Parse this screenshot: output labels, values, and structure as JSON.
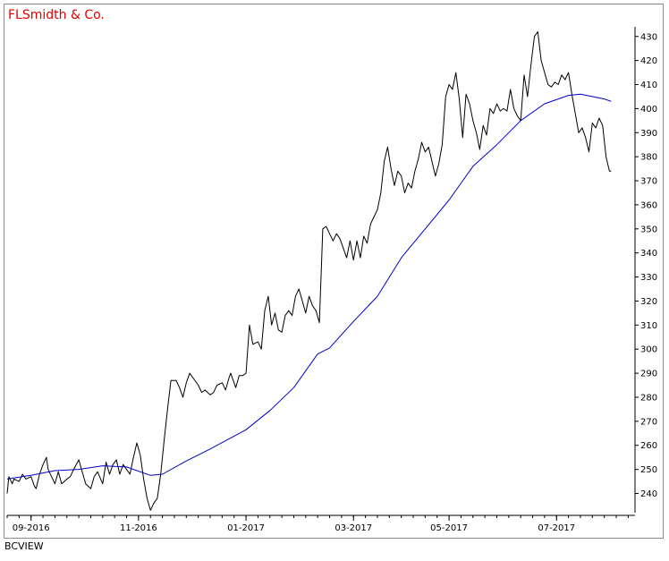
{
  "chart_data": {
    "type": "line",
    "title": "FLSmidth & Co.",
    "source": "BCVIEW",
    "colors": {
      "title": "#e00000",
      "price": "#000000",
      "moving_average": "#0000cc",
      "axes": "#000000"
    },
    "ylim": [
      232,
      434
    ],
    "y_ticks": [
      240,
      250,
      260,
      270,
      280,
      290,
      300,
      310,
      320,
      330,
      340,
      350,
      360,
      370,
      380,
      390,
      400,
      410,
      420,
      430
    ],
    "x_range": [
      "2016-08-22",
      "2017-08-25"
    ],
    "x_tick_labels": [
      {
        "date": "2016-09-05",
        "label": "09-2016"
      },
      {
        "date": "2016-11-07",
        "label": "11-2016"
      },
      {
        "date": "2017-01-09",
        "label": "01-2017"
      },
      {
        "date": "2017-03-13",
        "label": "03-2017"
      },
      {
        "date": "2017-05-08",
        "label": "05-2017"
      },
      {
        "date": "2017-07-10",
        "label": "07-2017"
      }
    ],
    "series": [
      {
        "style": "price",
        "points": [
          [
            "2016-08-22",
            240
          ],
          [
            "2016-08-23",
            247
          ],
          [
            "2016-08-25",
            244
          ],
          [
            "2016-08-26",
            246
          ],
          [
            "2016-08-29",
            245
          ],
          [
            "2016-08-31",
            248
          ],
          [
            "2016-09-02",
            246
          ],
          [
            "2016-09-05",
            247
          ],
          [
            "2016-09-07",
            243
          ],
          [
            "2016-09-08",
            242
          ],
          [
            "2016-09-10",
            248
          ],
          [
            "2016-09-12",
            252
          ],
          [
            "2016-09-14",
            255
          ],
          [
            "2016-09-15",
            250
          ],
          [
            "2016-09-17",
            247
          ],
          [
            "2016-09-19",
            244
          ],
          [
            "2016-09-21",
            249
          ],
          [
            "2016-09-23",
            244
          ],
          [
            "2016-09-26",
            246
          ],
          [
            "2016-09-28",
            247
          ],
          [
            "2016-09-30",
            250
          ],
          [
            "2016-10-03",
            254
          ],
          [
            "2016-10-05",
            249
          ],
          [
            "2016-10-07",
            244
          ],
          [
            "2016-10-10",
            242
          ],
          [
            "2016-10-12",
            247
          ],
          [
            "2016-10-14",
            249
          ],
          [
            "2016-10-17",
            244
          ],
          [
            "2016-10-19",
            253
          ],
          [
            "2016-10-21",
            248
          ],
          [
            "2016-10-23",
            252
          ],
          [
            "2016-10-25",
            254
          ],
          [
            "2016-10-27",
            248
          ],
          [
            "2016-10-29",
            252
          ],
          [
            "2016-10-31",
            250
          ],
          [
            "2016-11-02",
            248
          ],
          [
            "2016-11-04",
            255
          ],
          [
            "2016-11-06",
            261
          ],
          [
            "2016-11-08",
            256
          ],
          [
            "2016-11-10",
            246
          ],
          [
            "2016-11-12",
            238
          ],
          [
            "2016-11-14",
            233
          ],
          [
            "2016-11-16",
            236
          ],
          [
            "2016-11-18",
            238
          ],
          [
            "2016-11-20",
            248
          ],
          [
            "2016-11-22",
            262
          ],
          [
            "2016-11-24",
            275
          ],
          [
            "2016-11-26",
            287
          ],
          [
            "2016-11-29",
            287
          ],
          [
            "2016-12-01",
            284
          ],
          [
            "2016-12-03",
            280
          ],
          [
            "2016-12-05",
            286
          ],
          [
            "2016-12-07",
            290
          ],
          [
            "2016-12-09",
            288
          ],
          [
            "2016-12-12",
            285
          ],
          [
            "2016-12-14",
            282
          ],
          [
            "2016-12-16",
            283
          ],
          [
            "2016-12-19",
            281
          ],
          [
            "2016-12-21",
            282
          ],
          [
            "2016-12-23",
            285
          ],
          [
            "2016-12-26",
            286
          ],
          [
            "2016-12-28",
            283
          ],
          [
            "2016-12-30",
            288
          ],
          [
            "2016-12-31",
            290
          ],
          [
            "2017-01-03",
            284
          ],
          [
            "2017-01-05",
            289
          ],
          [
            "2017-01-07",
            289
          ],
          [
            "2017-01-09",
            290
          ],
          [
            "2017-01-11",
            310
          ],
          [
            "2017-01-13",
            302
          ],
          [
            "2017-01-16",
            303
          ],
          [
            "2017-01-18",
            300
          ],
          [
            "2017-01-20",
            316
          ],
          [
            "2017-01-22",
            322
          ],
          [
            "2017-01-24",
            310
          ],
          [
            "2017-01-26",
            315
          ],
          [
            "2017-01-28",
            308
          ],
          [
            "2017-01-30",
            307
          ],
          [
            "2017-02-01",
            314
          ],
          [
            "2017-02-03",
            316
          ],
          [
            "2017-02-05",
            314
          ],
          [
            "2017-02-07",
            322
          ],
          [
            "2017-02-09",
            325
          ],
          [
            "2017-02-11",
            320
          ],
          [
            "2017-02-13",
            315
          ],
          [
            "2017-02-15",
            322
          ],
          [
            "2017-02-17",
            318
          ],
          [
            "2017-02-19",
            316
          ],
          [
            "2017-02-21",
            311
          ],
          [
            "2017-02-23",
            350
          ],
          [
            "2017-02-25",
            351
          ],
          [
            "2017-02-27",
            348
          ],
          [
            "2017-03-01",
            345
          ],
          [
            "2017-03-03",
            348
          ],
          [
            "2017-03-05",
            346
          ],
          [
            "2017-03-07",
            342
          ],
          [
            "2017-03-09",
            338
          ],
          [
            "2017-03-11",
            345
          ],
          [
            "2017-03-13",
            337
          ],
          [
            "2017-03-15",
            345
          ],
          [
            "2017-03-17",
            338
          ],
          [
            "2017-03-19",
            347
          ],
          [
            "2017-03-21",
            344
          ],
          [
            "2017-03-23",
            352
          ],
          [
            "2017-03-25",
            355
          ],
          [
            "2017-03-27",
            358
          ],
          [
            "2017-03-29",
            365
          ],
          [
            "2017-03-31",
            378
          ],
          [
            "2017-04-02",
            384
          ],
          [
            "2017-04-04",
            375
          ],
          [
            "2017-04-06",
            368
          ],
          [
            "2017-04-08",
            374
          ],
          [
            "2017-04-10",
            372
          ],
          [
            "2017-04-12",
            365
          ],
          [
            "2017-04-14",
            369
          ],
          [
            "2017-04-16",
            367
          ],
          [
            "2017-04-18",
            374
          ],
          [
            "2017-04-20",
            379
          ],
          [
            "2017-04-22",
            386
          ],
          [
            "2017-04-24",
            382
          ],
          [
            "2017-04-26",
            384
          ],
          [
            "2017-04-28",
            378
          ],
          [
            "2017-04-30",
            372
          ],
          [
            "2017-05-02",
            377
          ],
          [
            "2017-05-04",
            385
          ],
          [
            "2017-05-06",
            405
          ],
          [
            "2017-05-08",
            410
          ],
          [
            "2017-05-10",
            408
          ],
          [
            "2017-05-12",
            415
          ],
          [
            "2017-05-14",
            404
          ],
          [
            "2017-05-16",
            388
          ],
          [
            "2017-05-18",
            406
          ],
          [
            "2017-05-20",
            402
          ],
          [
            "2017-05-22",
            395
          ],
          [
            "2017-05-24",
            390
          ],
          [
            "2017-05-26",
            383
          ],
          [
            "2017-05-28",
            393
          ],
          [
            "2017-05-30",
            389
          ],
          [
            "2017-06-01",
            400
          ],
          [
            "2017-06-03",
            398
          ],
          [
            "2017-06-05",
            402
          ],
          [
            "2017-06-07",
            399
          ],
          [
            "2017-06-09",
            400
          ],
          [
            "2017-06-11",
            399
          ],
          [
            "2017-06-13",
            408
          ],
          [
            "2017-06-15",
            400
          ],
          [
            "2017-06-17",
            397
          ],
          [
            "2017-06-19",
            395
          ],
          [
            "2017-06-21",
            414
          ],
          [
            "2017-06-23",
            405
          ],
          [
            "2017-06-25",
            418
          ],
          [
            "2017-06-27",
            430
          ],
          [
            "2017-06-29",
            432
          ],
          [
            "2017-07-01",
            420
          ],
          [
            "2017-07-03",
            415
          ],
          [
            "2017-07-05",
            410
          ],
          [
            "2017-07-07",
            409
          ],
          [
            "2017-07-09",
            411
          ],
          [
            "2017-07-11",
            410
          ],
          [
            "2017-07-13",
            414
          ],
          [
            "2017-07-15",
            412
          ],
          [
            "2017-07-17",
            415
          ],
          [
            "2017-07-19",
            406
          ],
          [
            "2017-07-21",
            398
          ],
          [
            "2017-07-23",
            390
          ],
          [
            "2017-07-25",
            392
          ],
          [
            "2017-07-27",
            388
          ],
          [
            "2017-07-29",
            382
          ],
          [
            "2017-07-31",
            394
          ],
          [
            "2017-08-02",
            392
          ],
          [
            "2017-08-04",
            396
          ],
          [
            "2017-08-06",
            393
          ],
          [
            "2017-08-08",
            380
          ],
          [
            "2017-08-10",
            374
          ],
          [
            "2017-08-11",
            374
          ]
        ]
      },
      {
        "style": "moving_average",
        "points": [
          [
            "2016-08-22",
            246
          ],
          [
            "2016-09-05",
            247.5
          ],
          [
            "2016-09-19",
            249.5
          ],
          [
            "2016-10-03",
            250
          ],
          [
            "2016-10-17",
            251.5
          ],
          [
            "2016-10-31",
            251
          ],
          [
            "2016-11-14",
            247.5
          ],
          [
            "2016-11-21",
            248
          ],
          [
            "2016-12-05",
            253.5
          ],
          [
            "2016-12-19",
            258.5
          ],
          [
            "2017-01-09",
            266.5
          ],
          [
            "2017-01-23",
            274.5
          ],
          [
            "2017-02-06",
            284
          ],
          [
            "2017-02-20",
            298
          ],
          [
            "2017-02-27",
            300.5
          ],
          [
            "2017-03-13",
            311.5
          ],
          [
            "2017-03-27",
            322
          ],
          [
            "2017-04-10",
            338
          ],
          [
            "2017-04-24",
            350
          ],
          [
            "2017-05-08",
            362
          ],
          [
            "2017-05-22",
            376
          ],
          [
            "2017-06-05",
            385
          ],
          [
            "2017-06-19",
            395
          ],
          [
            "2017-07-03",
            402
          ],
          [
            "2017-07-17",
            405.5
          ],
          [
            "2017-07-24",
            406
          ],
          [
            "2017-08-07",
            404
          ],
          [
            "2017-08-11",
            403
          ]
        ]
      }
    ]
  }
}
